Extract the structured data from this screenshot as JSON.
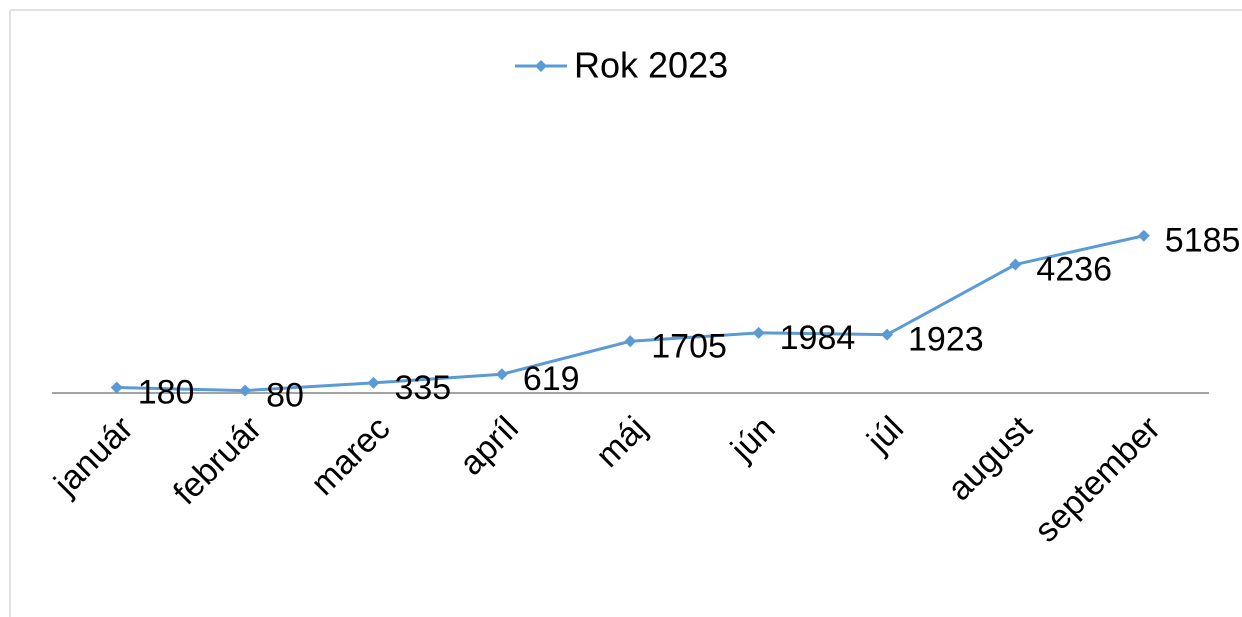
{
  "chart_data": {
    "type": "line",
    "categories": [
      "január",
      "február",
      "marec",
      "apríl",
      "máj",
      "jún",
      "júl",
      "august",
      "september"
    ],
    "series": [
      {
        "name": "Rok 2023",
        "color": "#5b9bd5",
        "values": [
          180,
          80,
          335,
          619,
          1705,
          1984,
          1923,
          4236,
          5185
        ]
      }
    ],
    "ylim": [
      0,
      6000
    ],
    "legend": "top",
    "data_labels": true
  }
}
